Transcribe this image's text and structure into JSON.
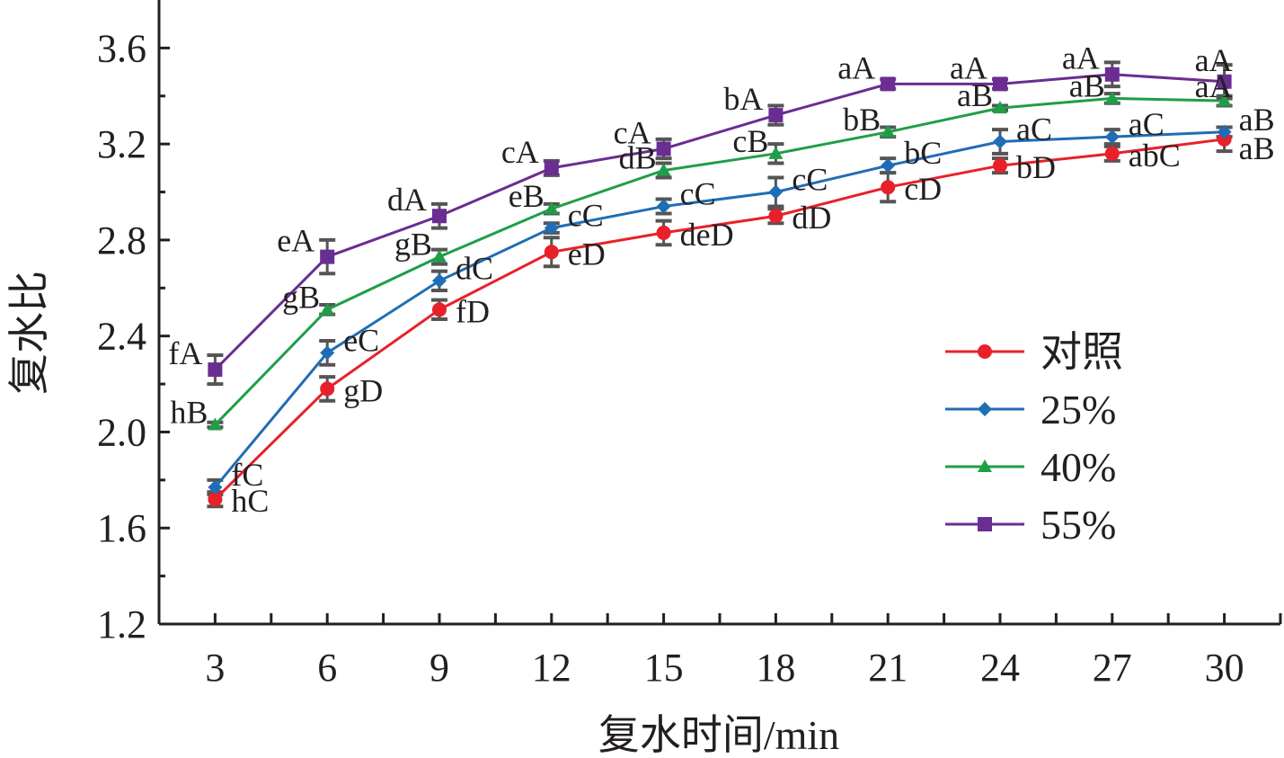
{
  "chart_data": {
    "type": "line",
    "title": "",
    "xlabel": "复水时间/min",
    "ylabel": "复水比",
    "x": [
      3,
      6,
      9,
      12,
      15,
      18,
      21,
      24,
      27,
      30
    ],
    "xticks": [
      "3",
      "6",
      "9",
      "12",
      "15",
      "18",
      "21",
      "24",
      "27",
      "30"
    ],
    "yticks": [
      "1.2",
      "1.6",
      "2.0",
      "2.4",
      "2.8",
      "3.2",
      "3.6"
    ],
    "ylim": [
      1.2,
      3.8
    ],
    "xlim": [
      1.5,
      31.5
    ],
    "grid": false,
    "legend_position": "center-right",
    "series": [
      {
        "name": "对照",
        "color": "#e8202a",
        "marker": "circle",
        "values": [
          1.72,
          2.18,
          2.51,
          2.75,
          2.83,
          2.9,
          3.02,
          3.11,
          3.16,
          3.22
        ],
        "errors": [
          0.03,
          0.05,
          0.04,
          0.06,
          0.05,
          0.03,
          0.06,
          0.03,
          0.03,
          0.05
        ],
        "labels": [
          "hC",
          "gD",
          "fD",
          "eD",
          "deD",
          "dD",
          "cD",
          "bD",
          "abC",
          "aB"
        ]
      },
      {
        "name": "25%",
        "color": "#1f6db5",
        "marker": "diamond",
        "values": [
          1.77,
          2.33,
          2.63,
          2.85,
          2.94,
          3.0,
          3.11,
          3.21,
          3.23,
          3.25
        ],
        "errors": [
          0.03,
          0.05,
          0.04,
          0.02,
          0.03,
          0.06,
          0.03,
          0.05,
          0.03,
          0.02
        ],
        "labels": [
          "fC",
          "eC",
          "dC",
          "cC",
          "cC",
          "cC",
          "bC",
          "aC",
          "aC",
          "aB"
        ]
      },
      {
        "name": "40%",
        "color": "#1f9e48",
        "marker": "triangle",
        "values": [
          2.03,
          2.51,
          2.73,
          2.93,
          3.09,
          3.16,
          3.25,
          3.35,
          3.39,
          3.38
        ],
        "errors": [
          0.01,
          0.02,
          0.03,
          0.02,
          0.03,
          0.04,
          0.02,
          0.01,
          0.02,
          0.02
        ],
        "labels": [
          "hB",
          "gB",
          "gB",
          "eB",
          "dB",
          "cB",
          "bB",
          "aB",
          "aB",
          "aA"
        ]
      },
      {
        "name": "55%",
        "color": "#6a2d91",
        "marker": "square",
        "values": [
          2.26,
          2.73,
          2.9,
          3.1,
          3.18,
          3.32,
          3.45,
          3.45,
          3.49,
          3.46
        ],
        "errors": [
          0.06,
          0.07,
          0.05,
          0.03,
          0.04,
          0.04,
          0.02,
          0.02,
          0.05,
          0.07
        ],
        "labels": [
          "fA",
          "eA",
          "dA",
          "cA",
          "cA",
          "bA",
          "aA",
          "aA",
          "aA",
          "aA"
        ]
      }
    ]
  }
}
